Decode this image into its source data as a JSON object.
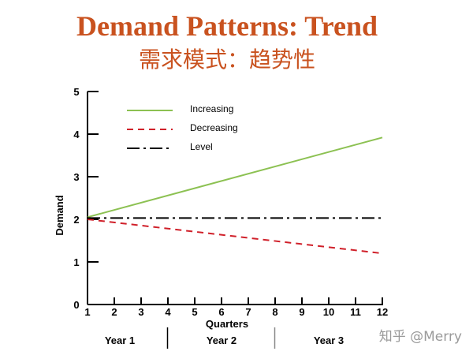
{
  "title": "Demand Patterns: Trend",
  "subtitle": "需求模式：趋势性",
  "watermark": "知乎 @Merry",
  "chart_data": {
    "type": "line",
    "xlabel": "Quarters",
    "ylabel": "Demand",
    "x": [
      1,
      2,
      3,
      4,
      5,
      6,
      7,
      8,
      9,
      10,
      11,
      12
    ],
    "xlim": [
      1,
      12
    ],
    "ylim": [
      0,
      5
    ],
    "yticks": [
      "0",
      "1",
      "2",
      "3",
      "4",
      "5"
    ],
    "xticks": [
      "1",
      "2",
      "3",
      "4",
      "5",
      "6",
      "7",
      "8",
      "9",
      "10",
      "11",
      "12"
    ],
    "grid": false,
    "legend": "top-left",
    "year_groups": [
      {
        "label": "Year 1",
        "from": 1,
        "to": 4
      },
      {
        "label": "Year 2",
        "from": 4,
        "to": 8
      },
      {
        "label": "Year 3",
        "from": 8,
        "to": 12
      }
    ],
    "series": [
      {
        "name": "Increasing",
        "style": "solid",
        "color": "#8cc152",
        "start": [
          1,
          2.05
        ],
        "end": [
          12,
          3.92
        ]
      },
      {
        "name": "Decreasing",
        "style": "dashed",
        "color": "#d0202a",
        "start": [
          1,
          2.0
        ],
        "end": [
          12,
          1.2
        ]
      },
      {
        "name": "Level",
        "style": "dash-dot",
        "color": "#000000",
        "start": [
          1,
          2.03
        ],
        "end": [
          12,
          2.03
        ]
      }
    ]
  }
}
